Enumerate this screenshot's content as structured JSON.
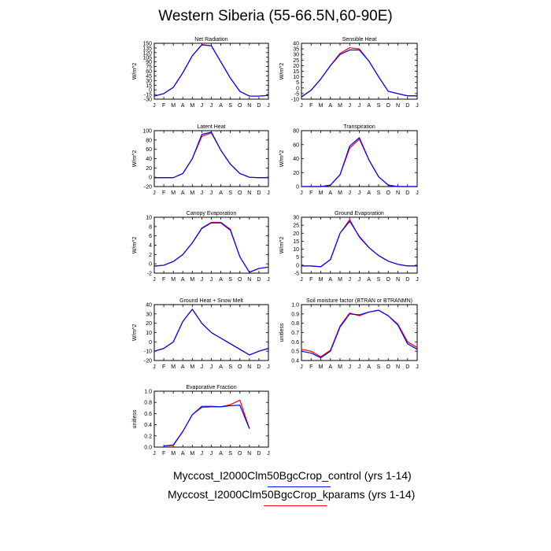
{
  "figure": {
    "title": "Western Siberia (55-66.5N,60-90E)",
    "legend": [
      {
        "label": "Myccost_I2000Clm50BgcCrop_control (yrs 1-14)",
        "color": "#0000ff"
      },
      {
        "label": "Myccost_I2000Clm50BgcCrop_kparams (yrs 1-14)",
        "color": "#ff0000"
      }
    ]
  },
  "chart_data": [
    {
      "type": "line",
      "title": "Net Radiation",
      "ylabel": "W/m^2",
      "categories": [
        "J",
        "F",
        "M",
        "A",
        "M",
        "J",
        "J",
        "A",
        "S",
        "O",
        "N",
        "D",
        "J"
      ],
      "ylim": [
        -30,
        150
      ],
      "yticks": [
        -30,
        -15,
        0,
        15,
        30,
        45,
        60,
        75,
        90,
        105,
        120,
        135,
        150
      ],
      "series": [
        {
          "name": "Myccost_I2000Clm50BgcCrop_control (yrs 1-14)",
          "color": "#0000ff",
          "values": [
            -20,
            -12,
            8,
            55,
            110,
            145,
            142,
            90,
            38,
            -5,
            -20,
            -20,
            -18
          ]
        },
        {
          "name": "Myccost_I2000Clm50BgcCrop_kparams (yrs 1-14)",
          "color": "#ff0000",
          "values": [
            -20,
            -12,
            8,
            55,
            110,
            146,
            142,
            90,
            38,
            -5,
            -20,
            -20,
            -18
          ]
        }
      ]
    },
    {
      "type": "line",
      "title": "Sensible Heat",
      "ylabel": "W/m^2",
      "categories": [
        "J",
        "F",
        "M",
        "A",
        "M",
        "J",
        "J",
        "A",
        "S",
        "O",
        "N",
        "D",
        "J"
      ],
      "ylim": [
        -10,
        40
      ],
      "yticks": [
        -10,
        -5,
        0,
        5,
        10,
        15,
        20,
        25,
        30,
        35,
        40
      ],
      "series": [
        {
          "name": "Myccost_I2000Clm50BgcCrop_control (yrs 1-14)",
          "color": "#0000ff",
          "values": [
            -8,
            -2,
            8,
            20,
            30,
            34,
            34,
            24,
            10,
            -3,
            -5,
            -7,
            -7
          ]
        },
        {
          "name": "Myccost_I2000Clm50BgcCrop_kparams (yrs 1-14)",
          "color": "#ff0000",
          "values": [
            -8,
            -2,
            8,
            20,
            31,
            36,
            35,
            24,
            10,
            -3,
            -5,
            -7,
            -7
          ]
        }
      ]
    },
    {
      "type": "line",
      "title": "Latent Heat",
      "ylabel": "W/m^2",
      "categories": [
        "J",
        "F",
        "M",
        "A",
        "M",
        "J",
        "J",
        "A",
        "S",
        "O",
        "N",
        "D",
        "J"
      ],
      "ylim": [
        -20,
        100
      ],
      "yticks": [
        -20,
        0,
        20,
        40,
        60,
        80,
        100
      ],
      "series": [
        {
          "name": "Myccost_I2000Clm50BgcCrop_control (yrs 1-14)",
          "color": "#0000ff",
          "values": [
            -1,
            -1,
            -1,
            8,
            40,
            92,
            97,
            58,
            28,
            8,
            0,
            -1,
            -1
          ]
        },
        {
          "name": "Myccost_I2000Clm50BgcCrop_kparams (yrs 1-14)",
          "color": "#ff0000",
          "values": [
            -1,
            -1,
            -1,
            8,
            40,
            88,
            95,
            58,
            28,
            8,
            0,
            -1,
            -1
          ]
        }
      ]
    },
    {
      "type": "line",
      "title": "Transpiration",
      "ylabel": "W/m^2",
      "categories": [
        "J",
        "F",
        "M",
        "A",
        "M",
        "J",
        "J",
        "A",
        "S",
        "O",
        "N",
        "D",
        "J"
      ],
      "ylim": [
        0,
        80
      ],
      "yticks": [
        0,
        20,
        40,
        60,
        80
      ],
      "series": [
        {
          "name": "Myccost_I2000Clm50BgcCrop_control (yrs 1-14)",
          "color": "#0000ff",
          "values": [
            0,
            0,
            0,
            2,
            17,
            58,
            70,
            38,
            14,
            2,
            0,
            0,
            0
          ]
        },
        {
          "name": "Myccost_I2000Clm50BgcCrop_kparams (yrs 1-14)",
          "color": "#ff0000",
          "values": [
            0,
            0,
            0,
            2,
            17,
            55,
            68,
            38,
            14,
            2,
            0,
            0,
            0
          ]
        }
      ]
    },
    {
      "type": "line",
      "title": "Canopy Evaporation",
      "ylabel": "W/m^2",
      "categories": [
        "J",
        "F",
        "M",
        "A",
        "M",
        "J",
        "J",
        "A",
        "S",
        "O",
        "N",
        "D",
        "J"
      ],
      "ylim": [
        -2,
        10
      ],
      "yticks": [
        -2,
        0,
        2,
        4,
        6,
        8,
        10
      ],
      "series": [
        {
          "name": "Myccost_I2000Clm50BgcCrop_control (yrs 1-14)",
          "color": "#0000ff",
          "values": [
            -0.5,
            -0.3,
            0.5,
            2,
            4.5,
            7.6,
            8.8,
            8.8,
            7.2,
            1.5,
            -1.8,
            -1,
            -0.7
          ]
        },
        {
          "name": "Myccost_I2000Clm50BgcCrop_kparams (yrs 1-14)",
          "color": "#ff0000",
          "values": [
            -0.5,
            -0.3,
            0.5,
            2,
            4.5,
            7.7,
            8.9,
            8.9,
            7.4,
            1.5,
            -1.8,
            -1,
            -0.7
          ]
        }
      ]
    },
    {
      "type": "line",
      "title": "Ground Evaporation",
      "ylabel": "W/m^2",
      "categories": [
        "J",
        "F",
        "M",
        "A",
        "M",
        "J",
        "J",
        "A",
        "S",
        "O",
        "N",
        "D",
        "J"
      ],
      "ylim": [
        -5,
        30
      ],
      "yticks": [
        -5,
        0,
        5,
        10,
        15,
        20,
        25,
        30
      ],
      "series": [
        {
          "name": "Myccost_I2000Clm50BgcCrop_control (yrs 1-14)",
          "color": "#0000ff",
          "values": [
            -0.5,
            -0.5,
            -1,
            3.5,
            20,
            27.5,
            18,
            11,
            6,
            2.5,
            0.5,
            -0.5,
            -0.5
          ]
        },
        {
          "name": "Myccost_I2000Clm50BgcCrop_kparams (yrs 1-14)",
          "color": "#ff0000",
          "values": [
            -0.5,
            -0.5,
            -1,
            3.5,
            20,
            28.5,
            17.5,
            11,
            6,
            2.5,
            0.5,
            -0.5,
            -0.5
          ]
        }
      ]
    },
    {
      "type": "line",
      "title": "Ground Heat + Snow Melt",
      "ylabel": "W/m^2",
      "categories": [
        "J",
        "F",
        "M",
        "A",
        "M",
        "J",
        "J",
        "A",
        "S",
        "O",
        "N",
        "D",
        "J"
      ],
      "ylim": [
        -20,
        40
      ],
      "yticks": [
        -20,
        -10,
        0,
        10,
        20,
        30,
        40
      ],
      "series": [
        {
          "name": "Myccost_I2000Clm50BgcCrop_control (yrs 1-14)",
          "color": "#0000ff",
          "values": [
            -10,
            -7,
            0,
            22,
            35,
            20,
            10,
            4,
            -2,
            -8,
            -14,
            -10,
            -7
          ]
        },
        {
          "name": "Myccost_I2000Clm50BgcCrop_kparams (yrs 1-14)",
          "color": "#ff0000",
          "values": [
            -10,
            -7,
            0,
            22,
            35,
            20,
            10,
            4,
            -2,
            -8,
            -14,
            -10,
            -7
          ]
        }
      ]
    },
    {
      "type": "line",
      "title": "Soil moisture factor (BTRAN or BTRANMN)",
      "ylabel": "unitless",
      "categories": [
        "J",
        "F",
        "M",
        "A",
        "M",
        "J",
        "J",
        "A",
        "S",
        "O",
        "N",
        "D",
        "J"
      ],
      "ylim": [
        0.4,
        1.0
      ],
      "yticks": [
        0.4,
        0.5,
        0.6,
        0.7,
        0.8,
        0.9,
        1.0
      ],
      "series": [
        {
          "name": "Myccost_I2000Clm50BgcCrop_control (yrs 1-14)",
          "color": "#0000ff",
          "values": [
            0.5,
            0.48,
            0.43,
            0.5,
            0.76,
            0.9,
            0.89,
            0.92,
            0.94,
            0.88,
            0.78,
            0.58,
            0.52
          ]
        },
        {
          "name": "Myccost_I2000Clm50BgcCrop_kparams (yrs 1-14)",
          "color": "#ff0000",
          "values": [
            0.52,
            0.5,
            0.44,
            0.51,
            0.77,
            0.91,
            0.88,
            0.92,
            0.94,
            0.88,
            0.79,
            0.6,
            0.54
          ]
        }
      ]
    },
    {
      "type": "line",
      "title": "Evaporative Fraction",
      "ylabel": "unitless",
      "categories": [
        "J",
        "F",
        "M",
        "A",
        "M",
        "J",
        "J",
        "A",
        "S",
        "O",
        "N",
        "D",
        "J"
      ],
      "ylim": [
        0,
        1.0
      ],
      "yticks": [
        0.0,
        0.2,
        0.4,
        0.6,
        0.8,
        1.0
      ],
      "series": [
        {
          "name": "Myccost_I2000Clm50BgcCrop_control (yrs 1-14)",
          "color": "#0000ff",
          "values": [
            null,
            0.02,
            0.04,
            0.28,
            0.58,
            0.73,
            0.73,
            0.72,
            0.74,
            0.75,
            0.33,
            null,
            null
          ]
        },
        {
          "name": "Myccost_I2000Clm50BgcCrop_kparams (yrs 1-14)",
          "color": "#ff0000",
          "values": [
            null,
            0.02,
            0.03,
            0.28,
            0.58,
            0.71,
            0.72,
            0.72,
            0.76,
            0.84,
            0.33,
            null,
            null
          ]
        }
      ]
    }
  ]
}
